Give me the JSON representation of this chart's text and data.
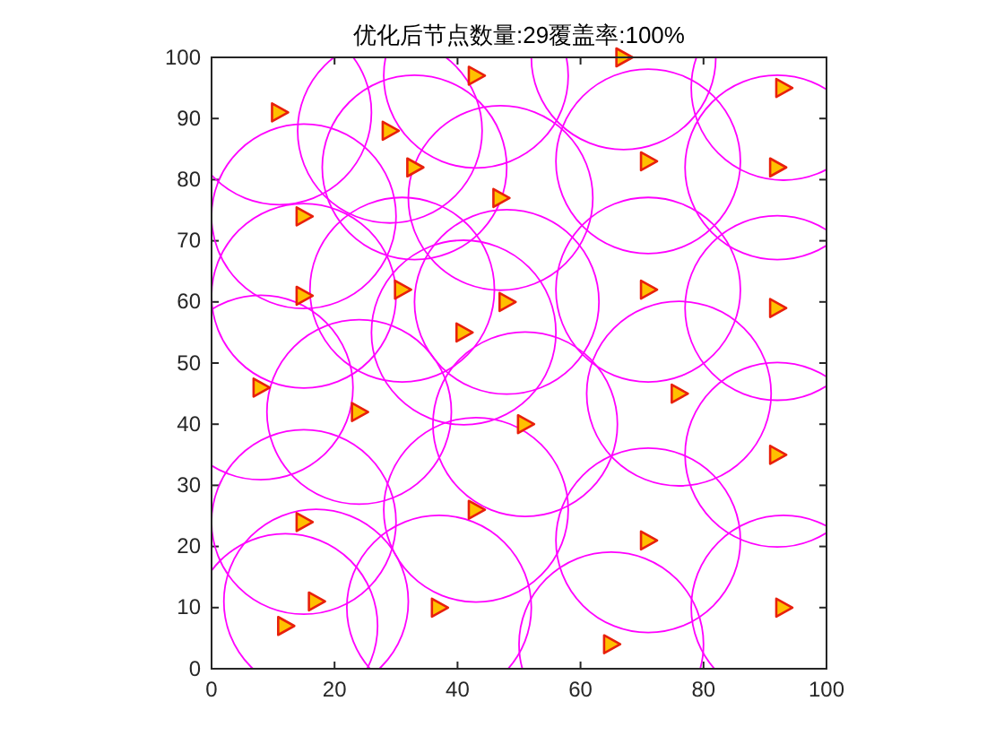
{
  "chart_data": {
    "type": "scatter",
    "title": "优化后节点数量:29覆盖率:100%",
    "x": [
      11,
      29,
      43,
      67,
      93,
      33,
      71,
      92,
      47,
      15,
      15,
      31,
      48,
      71,
      92,
      41,
      8,
      24,
      51,
      76,
      92,
      15,
      43,
      71,
      17,
      12,
      37,
      65,
      93
    ],
    "series": [
      {
        "marker": "triangle",
        "color": "#ffc000",
        "values": [
          91,
          88,
          97,
          100,
          95,
          82,
          83,
          82,
          77,
          74,
          61,
          62,
          60,
          62,
          59,
          55,
          46,
          42,
          40,
          45,
          35,
          24,
          26,
          21,
          11,
          7,
          10,
          4,
          10
        ]
      }
    ],
    "xlim": [
      0,
      100
    ],
    "ylim": [
      0,
      100
    ],
    "xticks": [
      0,
      20,
      40,
      60,
      80,
      100
    ],
    "yticks": [
      0,
      10,
      20,
      30,
      40,
      50,
      60,
      70,
      80,
      90,
      100
    ],
    "grid": false
  }
}
